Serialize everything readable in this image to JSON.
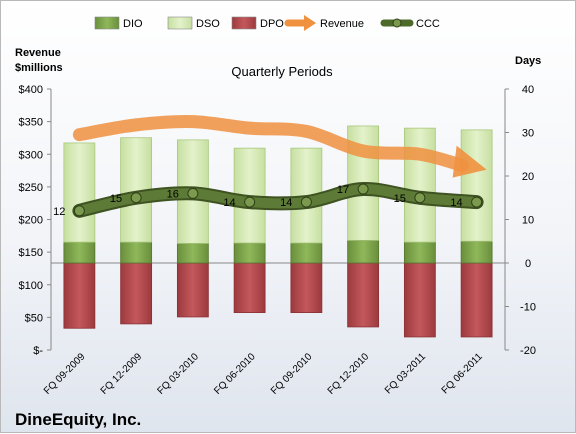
{
  "chart_data": {
    "type": "bar",
    "title": "Quarterly Periods",
    "company": "DineEquity, Inc.",
    "left_axis_title": [
      "Revenue",
      "$millions"
    ],
    "right_axis_title": "Days",
    "categories": [
      "FQ 09-2009",
      "FQ 12-2009",
      "FQ 03-2010",
      "FQ 06-2010",
      "FQ 09-2010",
      "FQ 12-2010",
      "FQ 03-2011",
      "FQ 06-2011"
    ],
    "left_ticks": [
      "$400",
      "$350",
      "$300",
      "$250",
      "$200",
      "$150",
      "$100",
      "$50",
      "$-"
    ],
    "right_ticks": [
      "40",
      "30",
      "20",
      "10",
      "0",
      "-10",
      "-20"
    ],
    "left_ylim": [
      0,
      400
    ],
    "right_ylim": [
      -20,
      40
    ],
    "legend_position": "top",
    "grid": false,
    "series": [
      {
        "name": "DIO",
        "axis": "days",
        "color": "#7aa24a",
        "values": [
          4.8,
          4.8,
          4.5,
          4.6,
          4.6,
          5.2,
          4.8,
          5.0
        ]
      },
      {
        "name": "DSO",
        "axis": "days",
        "color": "#d5e9b4",
        "values": [
          22.8,
          24.0,
          23.8,
          21.8,
          21.8,
          26.3,
          26.2,
          25.6
        ]
      },
      {
        "name": "DPO",
        "axis": "days",
        "color": "#b2484c",
        "values": [
          -15.0,
          -14.0,
          -12.4,
          -11.4,
          -11.4,
          -14.7,
          -17.0,
          -17.0
        ]
      },
      {
        "name": "Revenue",
        "axis": "revenue",
        "color": "#f0913f",
        "values": [
          330,
          345,
          350,
          340,
          335,
          305,
          300,
          278
        ]
      },
      {
        "name": "CCC",
        "axis": "days",
        "color": "#556b2f",
        "values": [
          12,
          15,
          16,
          14,
          14,
          17,
          15,
          14
        ]
      }
    ],
    "ccc_labels": [
      "12",
      "15",
      "16",
      "14",
      "14",
      "17",
      "15",
      "14"
    ]
  }
}
